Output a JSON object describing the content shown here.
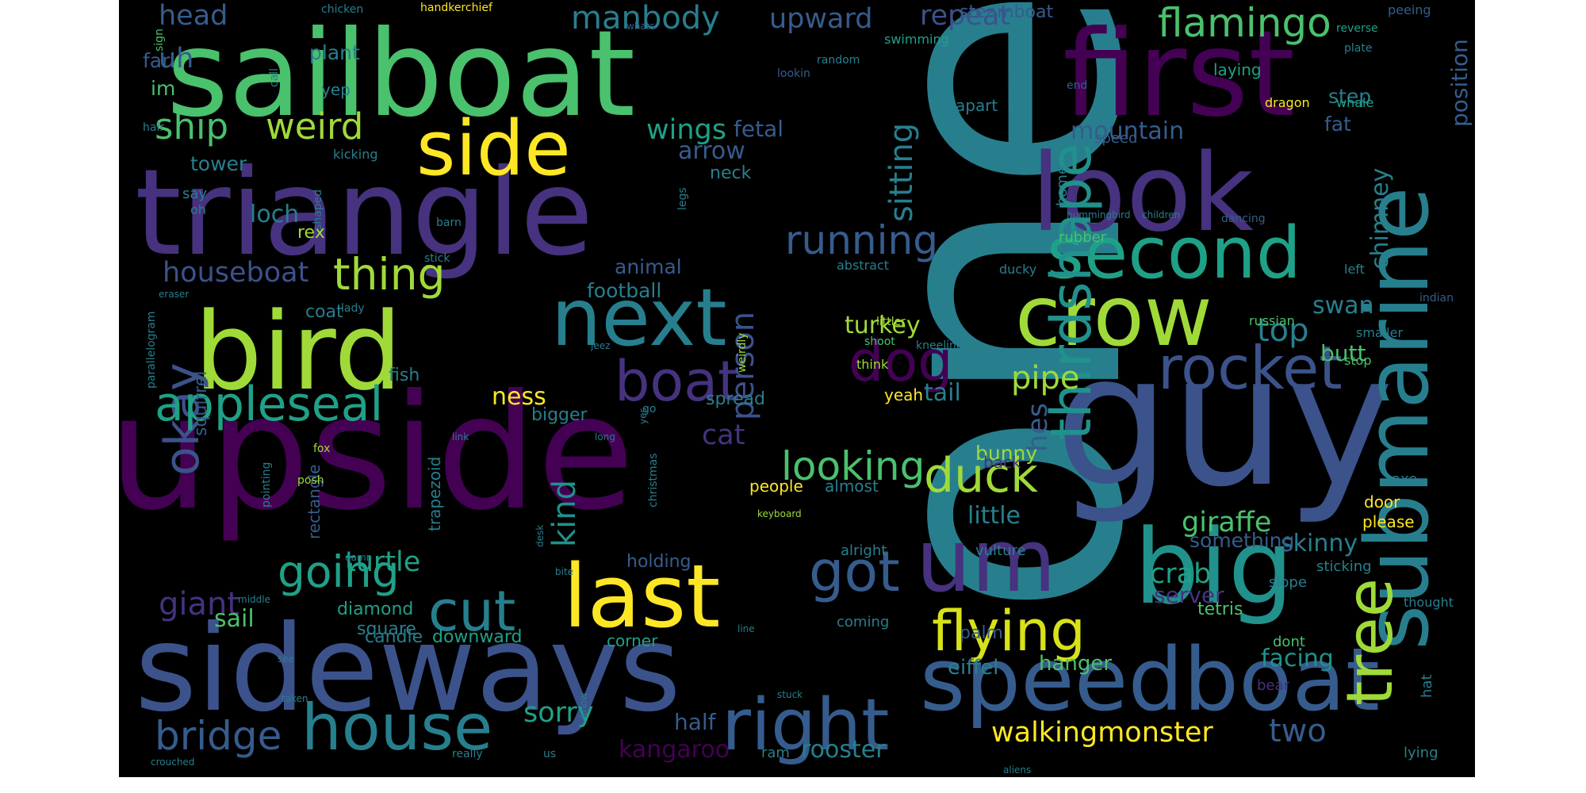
{
  "palette": [
    "#440154",
    "#46327e",
    "#365c8d",
    "#277f8e",
    "#1fa187",
    "#4ac16d",
    "#a0da39",
    "#fde725"
  ],
  "words": [
    {
      "text": "one",
      "color": "#277f8e"
    },
    {
      "text": "upside",
      "color": "#440154"
    },
    {
      "text": "guy",
      "color": "#3b528b"
    },
    {
      "text": "sailboat",
      "color": "#4ac16d"
    },
    {
      "text": "triangle",
      "color": "#46327e"
    },
    {
      "text": "sideways",
      "color": "#3b528b"
    },
    {
      "text": "first",
      "color": "#440154"
    },
    {
      "text": "bird",
      "color": "#a0da39"
    },
    {
      "text": "look",
      "color": "#46327e"
    },
    {
      "text": "speedboat",
      "color": "#365c8d"
    },
    {
      "text": "big",
      "color": "#21918c"
    },
    {
      "text": "submarine",
      "color": "#277f8e"
    },
    {
      "text": "crow",
      "color": "#a0da39"
    },
    {
      "text": "next",
      "color": "#277f8e"
    },
    {
      "text": "um",
      "color": "#46327e"
    },
    {
      "text": "last",
      "color": "#fde725"
    },
    {
      "text": "second",
      "color": "#1fa187"
    },
    {
      "text": "right",
      "color": "#365c8d"
    },
    {
      "text": "thirdshape",
      "color": "#21918c"
    },
    {
      "text": "tree",
      "color": "#a0da39"
    },
    {
      "text": "side",
      "color": "#fde725"
    },
    {
      "text": "rocket",
      "color": "#3b528b"
    },
    {
      "text": "house",
      "color": "#277f8e"
    },
    {
      "text": "flying",
      "color": "#d8e219"
    },
    {
      "text": "dog",
      "color": "#440154"
    },
    {
      "text": "boat",
      "color": "#46327e"
    },
    {
      "text": "got",
      "color": "#365c8d"
    },
    {
      "text": "duck",
      "color": "#a0da39"
    },
    {
      "text": "cut",
      "color": "#277f8e"
    },
    {
      "text": "going",
      "color": "#1fa187"
    },
    {
      "text": "okay",
      "color": "#3b528b"
    },
    {
      "text": "appleseal",
      "color": "#1fa187"
    },
    {
      "text": "looking",
      "color": "#4ac16d"
    },
    {
      "text": "ship",
      "color": "#4ac16d"
    },
    {
      "text": "weird",
      "color": "#a0da39"
    },
    {
      "text": "thing",
      "color": "#a0da39"
    },
    {
      "text": "running",
      "color": "#365c8d"
    },
    {
      "text": "flamingo",
      "color": "#4ac16d"
    },
    {
      "text": "manbody",
      "color": "#277f8e"
    },
    {
      "text": "repeat",
      "color": "#3b528b"
    },
    {
      "text": "upward",
      "color": "#365c8d"
    },
    {
      "text": "head",
      "color": "#365c8d"
    },
    {
      "text": "bridge",
      "color": "#365c8d"
    },
    {
      "text": "walkingmonster",
      "color": "#fde725"
    },
    {
      "text": "sitting",
      "color": "#277f8e"
    },
    {
      "text": "wings",
      "color": "#1fa187"
    },
    {
      "text": "houseboat",
      "color": "#3b528b"
    },
    {
      "text": "kind",
      "color": "#21918c"
    },
    {
      "text": "person",
      "color": "#3b528b"
    },
    {
      "text": "pipe",
      "color": "#a0da39"
    },
    {
      "text": "top",
      "color": "#277f8e"
    },
    {
      "text": "hes",
      "color": "#365c8d"
    },
    {
      "text": "giraffe",
      "color": "#4ac16d"
    },
    {
      "text": "crab",
      "color": "#1fa187"
    },
    {
      "text": "giant",
      "color": "#46327e"
    },
    {
      "text": "turtle",
      "color": "#1fa187"
    },
    {
      "text": "sorry",
      "color": "#1fa187"
    },
    {
      "text": "two",
      "color": "#365c8d"
    },
    {
      "text": "kangaroo",
      "color": "#440154"
    },
    {
      "text": "rooster",
      "color": "#277f8e"
    },
    {
      "text": "facing",
      "color": "#21918c"
    },
    {
      "text": "turkey",
      "color": "#a0da39"
    },
    {
      "text": "cat",
      "color": "#46327e"
    },
    {
      "text": "tail",
      "color": "#277f8e"
    },
    {
      "text": "mountain",
      "color": "#365c8d"
    },
    {
      "text": "chimney",
      "color": "#277f8e"
    },
    {
      "text": "skinny",
      "color": "#277f8e"
    },
    {
      "text": "little",
      "color": "#277f8e"
    },
    {
      "text": "swan",
      "color": "#277f8e"
    },
    {
      "text": "half",
      "color": "#365c8d"
    },
    {
      "text": "server",
      "color": "#46327e"
    },
    {
      "text": "loch",
      "color": "#277f8e"
    },
    {
      "text": "arrow",
      "color": "#365c8d"
    },
    {
      "text": "fetal",
      "color": "#365c8d"
    },
    {
      "text": "sail",
      "color": "#4ac16d"
    },
    {
      "text": "ness",
      "color": "#fde725"
    },
    {
      "text": "eiffel",
      "color": "#277f8e"
    },
    {
      "text": "hanger",
      "color": "#4ac16d"
    },
    {
      "text": "uh",
      "color": "#365c8d"
    },
    {
      "text": "position",
      "color": "#365c8d"
    },
    {
      "text": "plant",
      "color": "#277f8e"
    },
    {
      "text": "tower",
      "color": "#277f8e"
    },
    {
      "text": "butt",
      "color": "#4ac16d"
    },
    {
      "text": "something",
      "color": "#365c8d"
    },
    {
      "text": "step",
      "color": "#277f8e"
    },
    {
      "text": "fat",
      "color": "#365c8d"
    },
    {
      "text": "animal",
      "color": "#365c8d"
    },
    {
      "text": "football",
      "color": "#277f8e"
    },
    {
      "text": "bunny",
      "color": "#a0da39"
    },
    {
      "text": "diamond",
      "color": "#1fa187"
    },
    {
      "text": "candle",
      "color": "#277f8e"
    },
    {
      "text": "downward",
      "color": "#1fa187"
    },
    {
      "text": "tetris",
      "color": "#4ac16d"
    },
    {
      "text": "spread",
      "color": "#277f8e"
    },
    {
      "text": "bigger",
      "color": "#277f8e"
    },
    {
      "text": "holding",
      "color": "#365c8d"
    },
    {
      "text": "palm",
      "color": "#365c8d"
    },
    {
      "text": "neck",
      "color": "#277f8e"
    },
    {
      "text": "im",
      "color": "#4ac16d"
    },
    {
      "text": "far",
      "color": "#365c8d"
    },
    {
      "text": "steamboat",
      "color": "#365c8d"
    },
    {
      "text": "laying",
      "color": "#1fa187"
    },
    {
      "text": "apart",
      "color": "#277f8e"
    },
    {
      "text": "yep",
      "color": "#277f8e"
    },
    {
      "text": "rex",
      "color": "#a0da39"
    },
    {
      "text": "coat",
      "color": "#277f8e"
    },
    {
      "text": "squirrel",
      "color": "#365c8d"
    },
    {
      "text": "rectangle",
      "color": "#365c8d"
    },
    {
      "text": "trapezoid",
      "color": "#277f8e"
    },
    {
      "text": "fish",
      "color": "#277f8e"
    },
    {
      "text": "square",
      "color": "#277f8e"
    },
    {
      "text": "people",
      "color": "#fde725"
    },
    {
      "text": "almost",
      "color": "#277f8e"
    },
    {
      "text": "yeah",
      "color": "#fde725"
    },
    {
      "text": "alright",
      "color": "#277f8e"
    },
    {
      "text": "vulture",
      "color": "#277f8e"
    },
    {
      "text": "corner",
      "color": "#1fa187"
    },
    {
      "text": "coming",
      "color": "#277f8e"
    },
    {
      "text": "back",
      "color": "#46327e"
    },
    {
      "text": "bear",
      "color": "#46327e"
    },
    {
      "text": "dont",
      "color": "#4ac16d"
    },
    {
      "text": "door",
      "color": "#fde725"
    },
    {
      "text": "please",
      "color": "#fde725"
    },
    {
      "text": "hat",
      "color": "#277f8e"
    },
    {
      "text": "lying",
      "color": "#277f8e"
    },
    {
      "text": "slope",
      "color": "#277f8e"
    },
    {
      "text": "sticking",
      "color": "#277f8e"
    },
    {
      "text": "axe",
      "color": "#277f8e"
    },
    {
      "text": "thought",
      "color": "#277f8e"
    },
    {
      "text": "stop",
      "color": "#4ac16d"
    },
    {
      "text": "smaller",
      "color": "#277f8e"
    },
    {
      "text": "left",
      "color": "#277f8e"
    },
    {
      "text": "russian",
      "color": "#4ac16d"
    },
    {
      "text": "indian",
      "color": "#365c8d"
    },
    {
      "text": "rubber",
      "color": "#4ac16d"
    },
    {
      "text": "ducky",
      "color": "#277f8e"
    },
    {
      "text": "abstract",
      "color": "#277f8e"
    },
    {
      "text": "home",
      "color": "#277f8e"
    },
    {
      "text": "speed",
      "color": "#365c8d"
    },
    {
      "text": "dragon",
      "color": "#fde725"
    },
    {
      "text": "whale",
      "color": "#1fa187"
    },
    {
      "text": "plate",
      "color": "#277f8e"
    },
    {
      "text": "end",
      "color": "#365c8d"
    },
    {
      "text": "reverse",
      "color": "#1fa187"
    },
    {
      "text": "peeing",
      "color": "#365c8d"
    },
    {
      "text": "swimming",
      "color": "#1fa187"
    },
    {
      "text": "lookin",
      "color": "#365c8d"
    },
    {
      "text": "random",
      "color": "#277f8e"
    },
    {
      "text": "whats",
      "color": "#365c8d"
    },
    {
      "text": "handkerchief",
      "color": "#fde725"
    },
    {
      "text": "chicken",
      "color": "#277f8e"
    },
    {
      "text": "call",
      "color": "#277f8e"
    },
    {
      "text": "sign",
      "color": "#4ac16d"
    },
    {
      "text": "hair",
      "color": "#277f8e"
    },
    {
      "text": "kicking",
      "color": "#277f8e"
    },
    {
      "text": "say",
      "color": "#277f8e"
    },
    {
      "text": "oh",
      "color": "#277f8e"
    },
    {
      "text": "shaped",
      "color": "#277f8e"
    },
    {
      "text": "stick",
      "color": "#277f8e"
    },
    {
      "text": "barn",
      "color": "#277f8e"
    },
    {
      "text": "eraser",
      "color": "#277f8e"
    },
    {
      "text": "lady",
      "color": "#277f8e"
    },
    {
      "text": "parallelogram",
      "color": "#277f8e"
    },
    {
      "text": "legs",
      "color": "#277f8e"
    },
    {
      "text": "weirdly",
      "color": "#a0da39"
    },
    {
      "text": "think",
      "color": "#a0da39"
    },
    {
      "text": "shoot",
      "color": "#4ac16d"
    },
    {
      "text": "littler",
      "color": "#a0da39"
    },
    {
      "text": "kneeling",
      "color": "#277f8e"
    },
    {
      "text": "hummingbird",
      "color": "#277f8e"
    },
    {
      "text": "children",
      "color": "#277f8e"
    },
    {
      "text": "dancing",
      "color": "#365c8d"
    },
    {
      "text": "jeez",
      "color": "#277f8e"
    },
    {
      "text": "go",
      "color": "#277f8e"
    },
    {
      "text": "yes",
      "color": "#277f8e"
    },
    {
      "text": "long",
      "color": "#277f8e"
    },
    {
      "text": "link",
      "color": "#277f8e"
    },
    {
      "text": "christmas",
      "color": "#277f8e"
    },
    {
      "text": "pointing",
      "color": "#277f8e"
    },
    {
      "text": "posh",
      "color": "#a0da39"
    },
    {
      "text": "fox",
      "color": "#a0da39"
    },
    {
      "text": "damn",
      "color": "#277f8e"
    },
    {
      "text": "middle",
      "color": "#277f8e"
    },
    {
      "text": "see",
      "color": "#277f8e"
    },
    {
      "text": "bite",
      "color": "#277f8e"
    },
    {
      "text": "desk",
      "color": "#277f8e"
    },
    {
      "text": "keyboard",
      "color": "#a0da39"
    },
    {
      "text": "line",
      "color": "#277f8e"
    },
    {
      "text": "stuck",
      "color": "#277f8e"
    },
    {
      "text": "taken",
      "color": "#277f8e"
    },
    {
      "text": "know",
      "color": "#277f8e"
    },
    {
      "text": "crouched",
      "color": "#277f8e"
    },
    {
      "text": "really",
      "color": "#277f8e"
    },
    {
      "text": "us",
      "color": "#277f8e"
    },
    {
      "text": "ram",
      "color": "#277f8e"
    },
    {
      "text": "aliens",
      "color": "#277f8e"
    }
  ]
}
